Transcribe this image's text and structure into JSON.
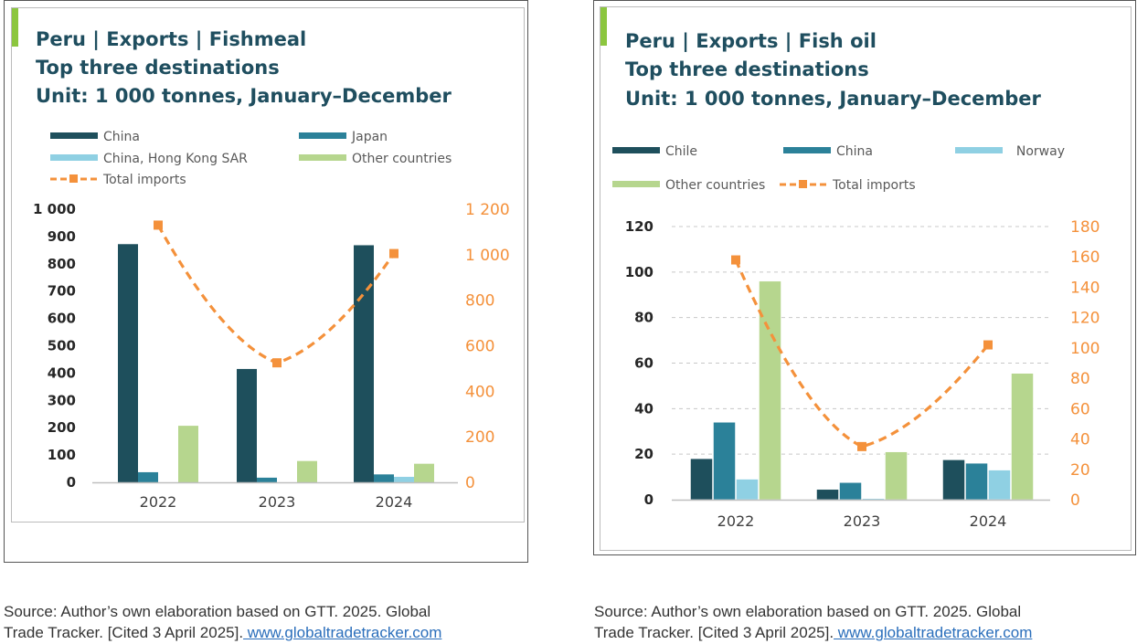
{
  "colors": {
    "dark_teal": "#1e4f5c",
    "teal": "#2b8199",
    "light_blue": "#8fd0e3",
    "light_green": "#b6d68e",
    "orange": "#f4913b",
    "title": "#1f4e5f"
  },
  "chart_data": [
    {
      "type": "bar",
      "title": "Peru | Exports | Fishmeal",
      "subtitle": "Top three destinations",
      "unit_label": "Unit: 1 000 tonnes, January–December",
      "categories": [
        "2022",
        "2023",
        "2024"
      ],
      "series": [
        {
          "name": "China",
          "values": [
            872,
            415,
            868
          ],
          "color": "#1e4f5c"
        },
        {
          "name": "Japan",
          "values": [
            37,
            17,
            29
          ],
          "color": "#2b8199"
        },
        {
          "name": "China, Hong Kong SAR",
          "values": [
            0,
            0,
            20
          ],
          "color": "#8fd0e3"
        },
        {
          "name": "Other countries",
          "values": [
            207,
            78,
            68
          ],
          "color": "#b6d68e"
        }
      ],
      "line": {
        "name": "Total imports",
        "axis": "right",
        "values": [
          1130,
          525,
          1005
        ],
        "color": "#f4913b"
      },
      "legend": [
        {
          "label": "China",
          "kind": "bar",
          "color": "#1e4f5c"
        },
        {
          "label": "Japan",
          "kind": "bar",
          "color": "#2b8199"
        },
        {
          "label": "China, Hong Kong SAR",
          "kind": "bar",
          "color": "#8fd0e3"
        },
        {
          "label": "Other countries",
          "kind": "bar",
          "color": "#b6d68e"
        },
        {
          "label": "Total imports",
          "kind": "line",
          "color": "#f4913b"
        }
      ],
      "legend_placement": "top",
      "ylim": [
        0,
        1000
      ],
      "yticks": [
        0,
        100,
        200,
        300,
        400,
        500,
        600,
        700,
        800,
        900,
        1000
      ],
      "ytick_labels": [
        "0",
        "100",
        "200",
        "300",
        "400",
        "500",
        "600",
        "700",
        "800",
        "900",
        "1 000"
      ],
      "y2lim": [
        0,
        1200
      ],
      "y2ticks": [
        0,
        200,
        400,
        600,
        800,
        1000,
        1200
      ],
      "y2tick_labels": [
        "0",
        "200",
        "400",
        "600",
        "800",
        "1 000",
        "1 200"
      ],
      "grid": false
    },
    {
      "type": "bar",
      "title": "Peru | Exports | Fish oil",
      "subtitle": "Top three destinations",
      "unit_label": "Unit: 1 000 tonnes, January–December",
      "categories": [
        "2022",
        "2023",
        "2024"
      ],
      "series": [
        {
          "name": "Chile",
          "values": [
            18,
            4.5,
            17.5
          ],
          "color": "#1e4f5c"
        },
        {
          "name": "China",
          "values": [
            34,
            7.5,
            16
          ],
          "color": "#2b8199"
        },
        {
          "name": "Norway",
          "values": [
            9,
            0.5,
            13
          ],
          "color": "#8fd0e3"
        },
        {
          "name": "Other countries",
          "values": [
            96,
            21,
            55.5
          ],
          "color": "#b6d68e"
        }
      ],
      "line": {
        "name": "Total imports",
        "axis": "right",
        "values": [
          158,
          35,
          102
        ],
        "color": "#f4913b"
      },
      "legend": [
        {
          "label": "Chile",
          "kind": "bar",
          "color": "#1e4f5c"
        },
        {
          "label": "China",
          "kind": "bar",
          "color": "#2b8199"
        },
        {
          "label": "Norway",
          "kind": "bar",
          "color": "#8fd0e3"
        },
        {
          "label": "Other countries",
          "kind": "bar",
          "color": "#b6d68e"
        },
        {
          "label": "Total imports",
          "kind": "line",
          "color": "#f4913b"
        }
      ],
      "legend_placement": "top",
      "ylim": [
        0,
        120
      ],
      "yticks": [
        0,
        20,
        40,
        60,
        80,
        100,
        120
      ],
      "ytick_labels": [
        "0",
        "20",
        "40",
        "60",
        "80",
        "100",
        "120"
      ],
      "y2lim": [
        0,
        180
      ],
      "y2ticks": [
        0,
        20,
        40,
        60,
        80,
        100,
        120,
        140,
        160,
        180
      ],
      "y2tick_labels": [
        "0",
        "20",
        "40",
        "60",
        "80",
        "100",
        "120",
        "140",
        "160",
        "180"
      ],
      "grid": true
    }
  ],
  "sources": [
    {
      "line1": "Source: Author’s own elaboration based on GTT. 2025. Global",
      "line2": "Trade Tracker. [Cited 3 April 2025].",
      "link": " www.globaltradetracker.com"
    },
    {
      "line1": "Source: Author’s own elaboration based on GTT. 2025. Global",
      "line2": "Trade Tracker. [Cited 3 April 2025].",
      "link": " www.globaltradetracker.com"
    }
  ]
}
